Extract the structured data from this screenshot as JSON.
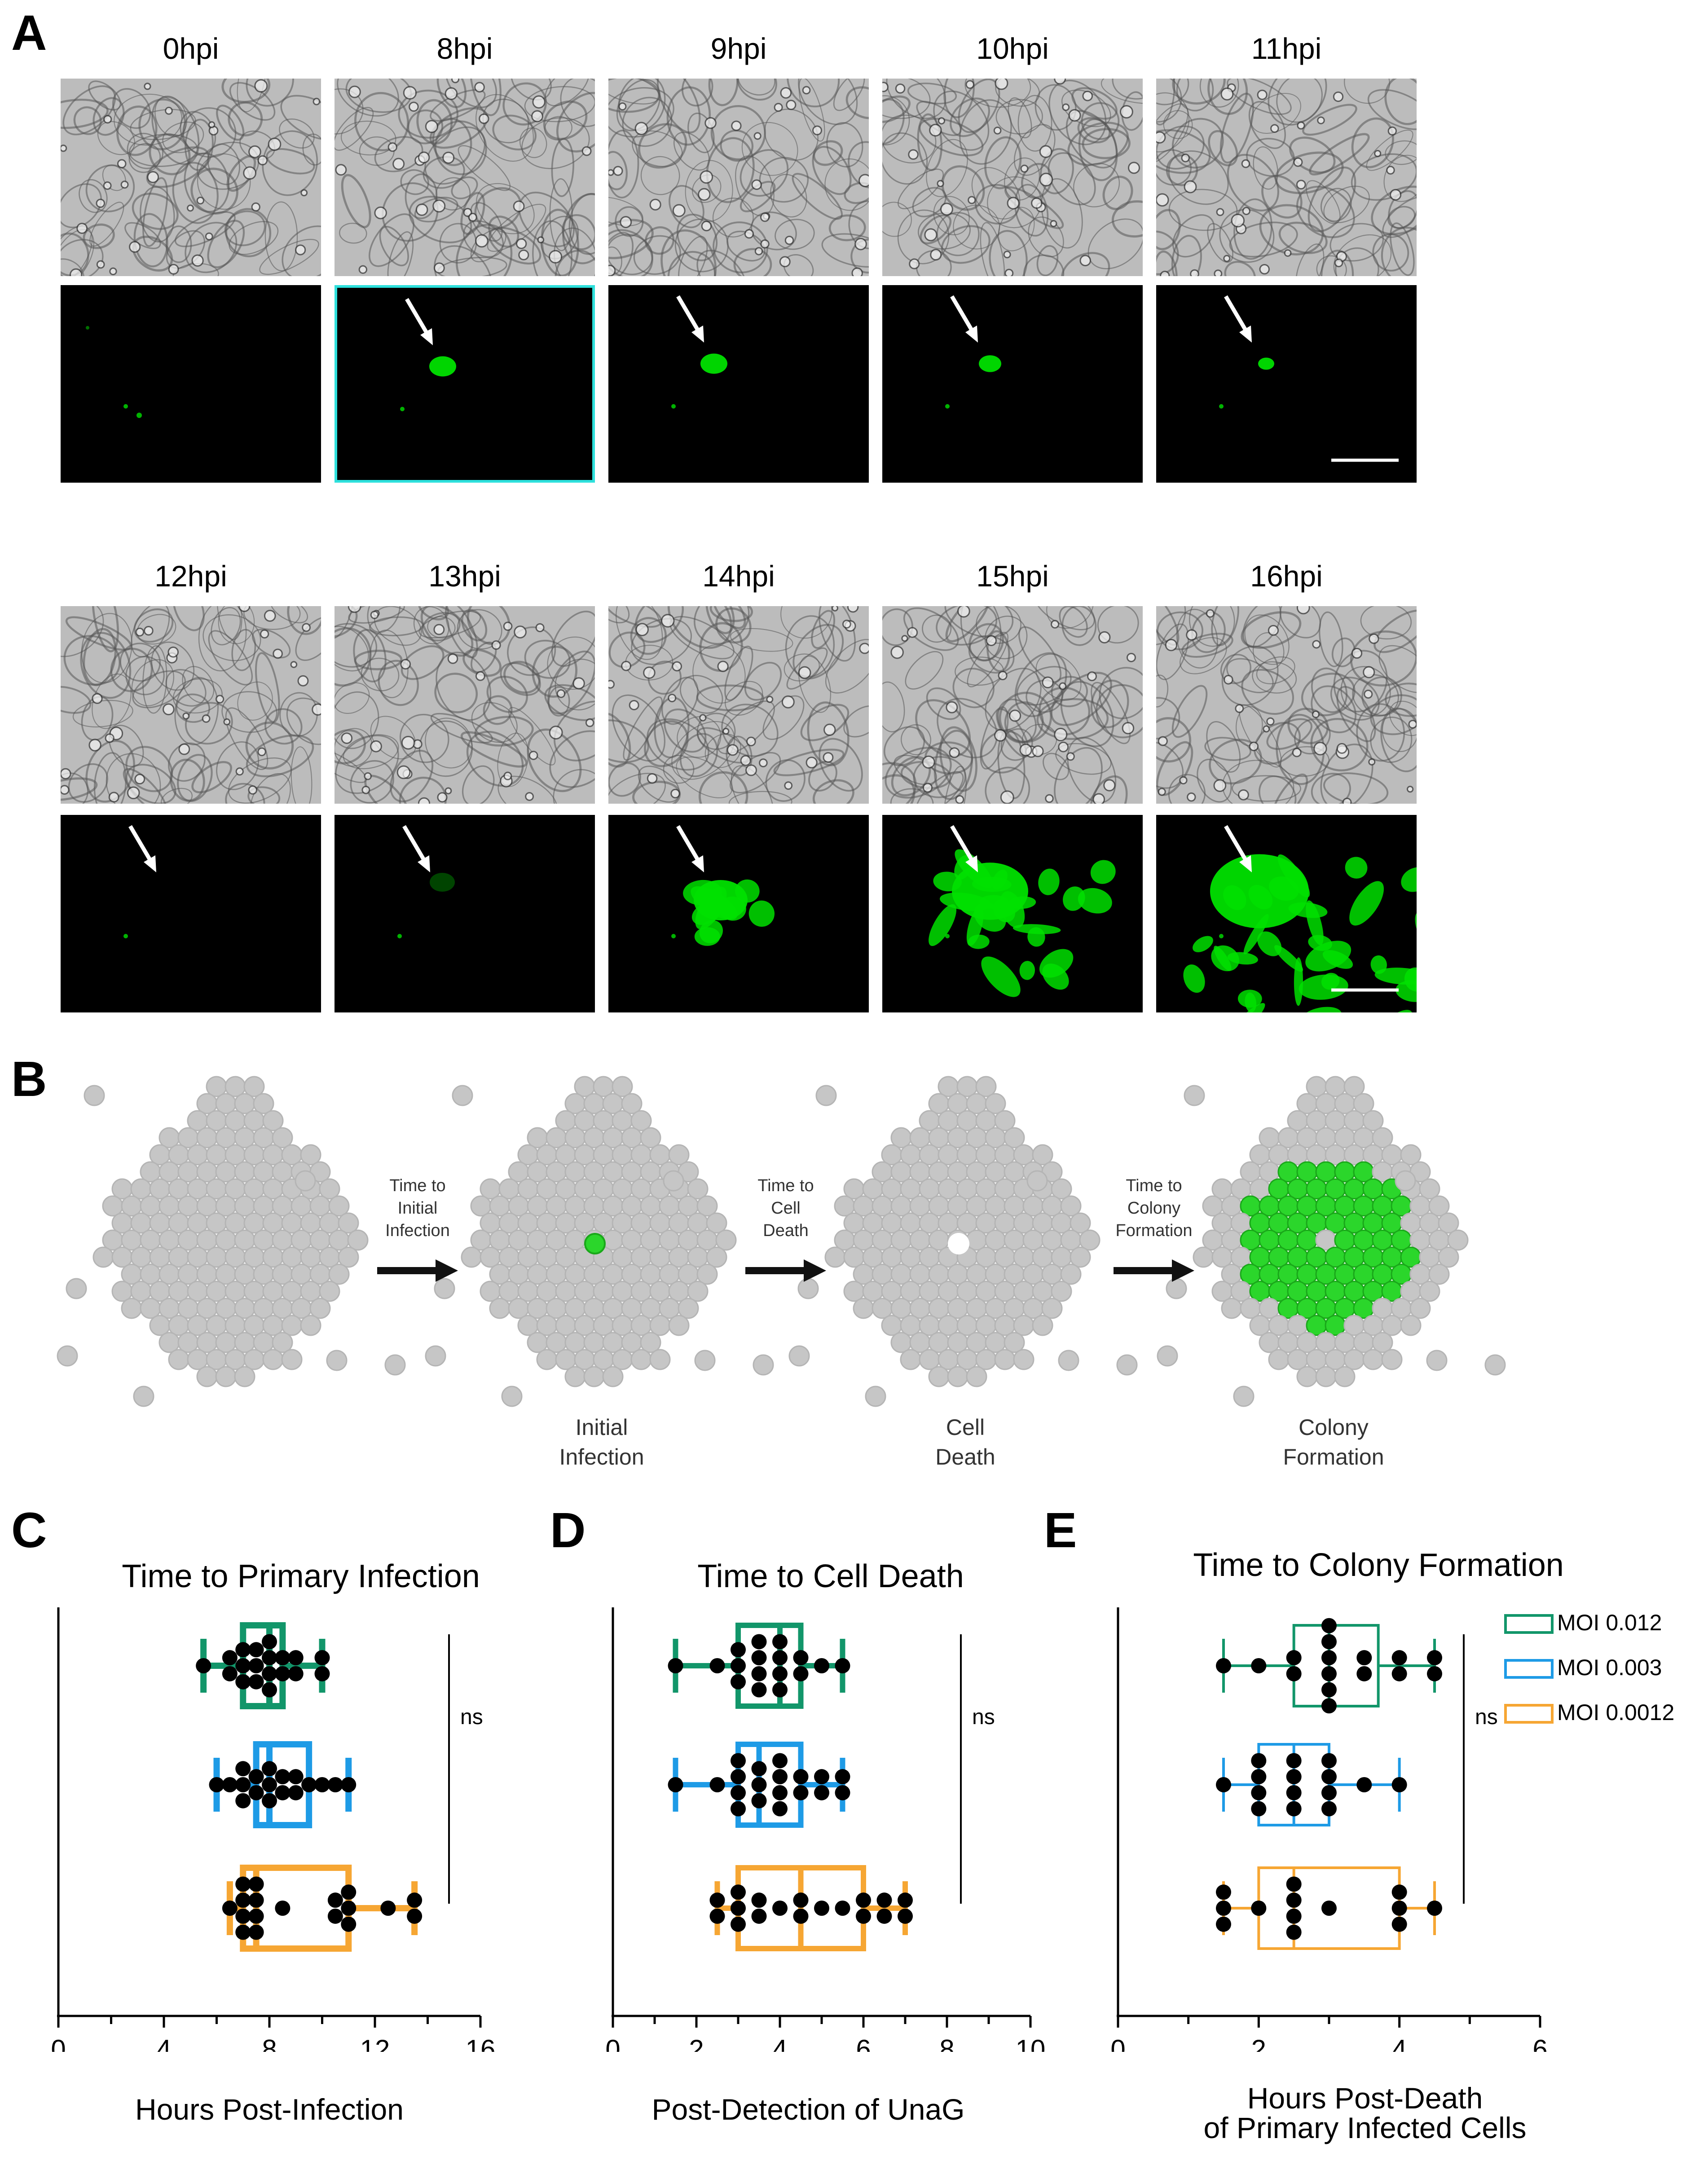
{
  "panels": {
    "a": "A",
    "b": "B",
    "c": "C",
    "d": "D",
    "e": "E"
  },
  "timepoints_row1": [
    "0hpi",
    "8hpi",
    "9hpi",
    "10hpi",
    "11hpi"
  ],
  "timepoints_row2": [
    "12hpi",
    "13hpi",
    "14hpi",
    "15hpi",
    "16hpi"
  ],
  "colors": {
    "green": "#00e000",
    "highlight_border": "#2ee0dc",
    "moi_0012": "#12966a",
    "moi_0003": "#1e9be6",
    "moi_00012": "#f6a633",
    "cell_grey": "#c6c6c6"
  },
  "schematic": {
    "arrows": [
      [
        "Time to",
        "Initial",
        "Infection"
      ],
      [
        "Time to",
        "Cell",
        "Death"
      ],
      [
        "Time to",
        "Colony",
        "Formation"
      ]
    ],
    "stage_labels": [
      [],
      [
        "Initial",
        "Infection"
      ],
      [
        "Cell",
        "Death"
      ],
      [
        "Colony",
        "Formation"
      ]
    ]
  },
  "legend": {
    "moi_0012": "MOI 0.012",
    "moi_0003": "MOI 0.003",
    "moi_00012": "MOI 0.0012"
  },
  "chart_data": [
    {
      "type": "box",
      "panel": "C",
      "title": "Time to Primary Infection",
      "xlabel": "Hours Post-Infection",
      "xlim": [
        0,
        16
      ],
      "xticks": [
        0,
        4,
        8,
        12,
        16
      ],
      "significance": "ns",
      "series": [
        {
          "name": "MOI 0.012",
          "color": "#12966a",
          "min": 5.5,
          "q1": 7,
          "median": 8,
          "q3": 8.5,
          "max": 10,
          "points": [
            5.5,
            6.5,
            6.5,
            7,
            7,
            7,
            7.5,
            7.5,
            7.5,
            8,
            8,
            8,
            8,
            8.5,
            8.5,
            9,
            9,
            10,
            10
          ]
        },
        {
          "name": "MOI 0.003",
          "color": "#1e9be6",
          "min": 6,
          "q1": 7.5,
          "median": 8,
          "q3": 9.5,
          "max": 11,
          "points": [
            6,
            6.5,
            7,
            7,
            7,
            7.5,
            7.5,
            8,
            8,
            8,
            8.5,
            8.5,
            9,
            9,
            9.5,
            10,
            10.5,
            11
          ]
        },
        {
          "name": "MOI 0.0012",
          "color": "#f6a633",
          "min": 6.5,
          "q1": 7,
          "median": 7.5,
          "q3": 11,
          "max": 13.5,
          "points": [
            6.5,
            7,
            7,
            7,
            7,
            7.5,
            7.5,
            7.5,
            7.5,
            8.5,
            10.5,
            10.5,
            11,
            11,
            11,
            12.5,
            13.5,
            13.5
          ]
        }
      ]
    },
    {
      "type": "box",
      "panel": "D",
      "title": "Time to Cell Death",
      "xlabel": "Post-Detection of UnaG",
      "xlim": [
        0,
        10
      ],
      "xticks": [
        0,
        2,
        4,
        6,
        8,
        10
      ],
      "significance": "ns",
      "series": [
        {
          "name": "MOI 0.012",
          "color": "#12966a",
          "min": 1.5,
          "q1": 3,
          "median": 4,
          "q3": 4.5,
          "max": 5.5,
          "points": [
            1.5,
            2.5,
            3,
            3,
            3,
            3.5,
            3.5,
            3.5,
            3.5,
            4,
            4,
            4,
            4,
            4.5,
            4.5,
            5,
            5.5
          ]
        },
        {
          "name": "MOI 0.003",
          "color": "#1e9be6",
          "min": 1.5,
          "q1": 3,
          "median": 3.5,
          "q3": 4.5,
          "max": 5.5,
          "points": [
            1.5,
            2.5,
            3,
            3,
            3,
            3,
            3.5,
            3.5,
            3.5,
            4,
            4,
            4,
            4,
            4.5,
            4.5,
            5,
            5,
            5.5,
            5.5
          ]
        },
        {
          "name": "MOI 0.0012",
          "color": "#f6a633",
          "min": 2.5,
          "q1": 3,
          "median": 4.5,
          "q3": 6,
          "max": 7,
          "points": [
            2.5,
            2.5,
            3,
            3,
            3,
            3.5,
            3.5,
            4,
            4.5,
            4.5,
            5,
            5.5,
            6,
            6,
            6.5,
            6.5,
            7,
            7
          ]
        }
      ]
    },
    {
      "type": "box",
      "panel": "E",
      "title": "Time to Colony Formation",
      "xlabel": [
        "Hours Post-Death",
        "of Primary Infected Cells"
      ],
      "xlim": [
        0,
        6
      ],
      "xticks": [
        0,
        2,
        4,
        6
      ],
      "significance": "ns",
      "series": [
        {
          "name": "MOI 0.012",
          "color": "#12966a",
          "min": 1.5,
          "q1": 2.5,
          "median": 3,
          "q3": 3.7,
          "max": 4.5,
          "points": [
            1.5,
            2,
            2.5,
            2.5,
            3,
            3,
            3,
            3,
            3,
            3,
            3.5,
            3.5,
            4,
            4,
            4.5,
            4.5
          ]
        },
        {
          "name": "MOI 0.003",
          "color": "#1e9be6",
          "min": 1.5,
          "q1": 2,
          "median": 2.5,
          "q3": 3,
          "max": 4,
          "points": [
            1.5,
            2,
            2,
            2,
            2,
            2.5,
            2.5,
            2.5,
            2.5,
            3,
            3,
            3,
            3,
            3.5,
            4
          ]
        },
        {
          "name": "MOI 0.0012",
          "color": "#f6a633",
          "min": 1.5,
          "q1": 2,
          "median": 2.5,
          "q3": 4,
          "max": 4.5,
          "points": [
            1.5,
            1.5,
            1.5,
            2,
            2.5,
            2.5,
            2.5,
            2.5,
            3,
            4,
            4,
            4,
            4.5
          ]
        }
      ]
    }
  ]
}
